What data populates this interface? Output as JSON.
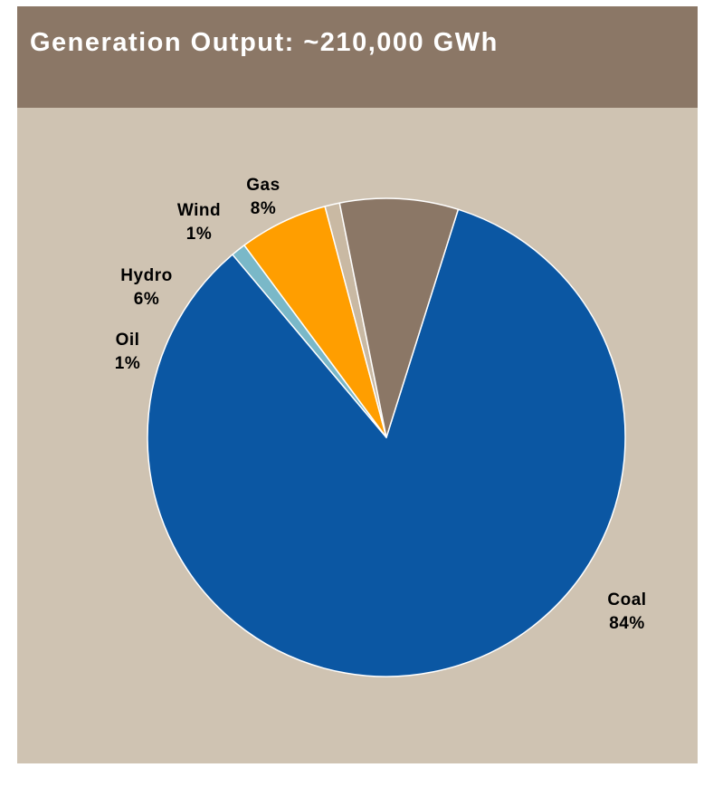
{
  "header": {
    "title": "Generation Output: ~210,000 GWh"
  },
  "colors": {
    "panel_background": "#cfc3b2",
    "header_background": "#8b7766",
    "title_text": "#ffffff"
  },
  "chart_data": {
    "type": "pie",
    "title": "Generation Output: ~210,000 GWh",
    "start": "top, clockwise",
    "slices": [
      {
        "name": "Coal",
        "value": 84,
        "label": "84%",
        "color": "#0b57a3"
      },
      {
        "name": "Oil",
        "value": 1,
        "label": "1%",
        "color": "#7ab8c8"
      },
      {
        "name": "Hydro",
        "value": 6,
        "label": "6%",
        "color": "#ff9e00"
      },
      {
        "name": "Wind",
        "value": 1,
        "label": "1%",
        "color": "#c9b9a3"
      },
      {
        "name": "Gas",
        "value": 8,
        "label": "8%",
        "color": "#8b7766"
      }
    ]
  }
}
